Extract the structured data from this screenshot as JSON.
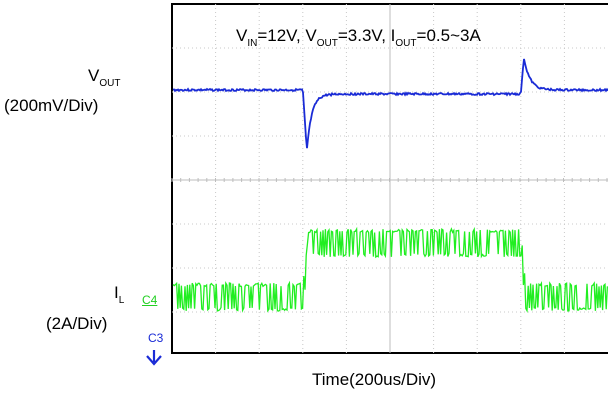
{
  "chart_data": {
    "type": "line",
    "title": "",
    "condition": {
      "v_in_main": "V",
      "v_in_sub": "IN",
      "v_in_val": "=12V,",
      "v_out_main": "V",
      "v_out_sub": "OUT",
      "v_out_val": "=3.3V,",
      "i_out_main": "I",
      "i_out_sub": "OUT",
      "i_out_val": "=0.5~3A"
    },
    "xlabel": "Time(200us/Div)",
    "x_divisions": 10,
    "grid": true,
    "channels": [
      {
        "name_main": "V",
        "name_sub": "OUT",
        "scale": "(200mV/Div)",
        "color": "#1a2bd6",
        "baseline_div": 2.1,
        "step_up_time_div": 3.0,
        "undershoot_div": -1.4,
        "step_down_time_div": 8.0,
        "overshoot_div": 0.75
      },
      {
        "name_main": "I",
        "name_sub": "L",
        "scale": "(2A/Div)",
        "marker": "C4",
        "color": "#21ee21",
        "low_level_A": 0.5,
        "high_level_A": 3.0,
        "ripple_A": 0.65,
        "step_up_time_div": 3.0,
        "step_down_time_div": 8.0
      }
    ],
    "ground_marker": "C3"
  }
}
